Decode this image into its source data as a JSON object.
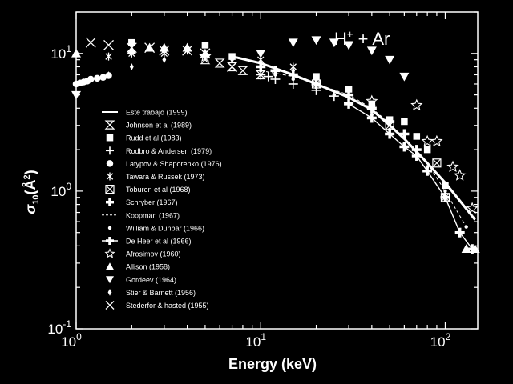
{
  "chart_data": {
    "type": "scatter",
    "title": "",
    "annotation": {
      "base": "H",
      "sup": "+",
      "rest": " + Ar"
    },
    "xlabel": "Energy (keV)",
    "ylabel": {
      "sigma": "σ",
      "sub": "10",
      "unit": "(Å",
      "sup": "2",
      "close": ")"
    },
    "xscale": "log",
    "yscale": "log",
    "xlim": [
      1,
      150
    ],
    "ylim": [
      0.1,
      20
    ],
    "x_ticks": [
      {
        "value": 1,
        "base": "10",
        "exp": "0"
      },
      {
        "value": 10,
        "base": "10",
        "exp": "1"
      },
      {
        "value": 100,
        "base": "10",
        "exp": "2"
      }
    ],
    "y_ticks": [
      {
        "value": 0.1,
        "base": "10",
        "exp": "-1"
      },
      {
        "value": 1,
        "base": "10",
        "exp": "0"
      },
      {
        "value": 10,
        "base": "10",
        "exp": "1"
      }
    ],
    "grid": false,
    "legend_position": "left",
    "series": [
      {
        "name": "Este trabajo (1999)",
        "marker": "line",
        "x": [
          7,
          10,
          15,
          20,
          30,
          40,
          50,
          60,
          80,
          100,
          120,
          145
        ],
        "y": [
          9.5,
          8.5,
          7.0,
          6.0,
          4.8,
          3.9,
          3.0,
          2.4,
          1.6,
          1.15,
          0.85,
          0.62
        ]
      },
      {
        "name": "Johnson et al (1989)",
        "marker": "hourglass",
        "x": [
          5,
          6,
          7,
          8,
          10
        ],
        "y": [
          9.0,
          8.5,
          8.0,
          7.5,
          7.0
        ]
      },
      {
        "name": "Rudd et al (1983)",
        "marker": "square",
        "x": [
          2,
          5,
          7,
          20,
          30,
          40,
          50,
          60,
          70,
          80,
          100
        ],
        "y": [
          12,
          11.5,
          9.5,
          6.8,
          5.5,
          4.3,
          3.3,
          3.2,
          2.5,
          2.0,
          1.1
        ]
      },
      {
        "name": "Rodbro & Andersen (1979)",
        "marker": "plus",
        "x": [
          10,
          11,
          12,
          15,
          20,
          25,
          30
        ],
        "y": [
          7.0,
          6.8,
          6.5,
          6.0,
          5.4,
          4.9,
          4.4
        ]
      },
      {
        "name": "Latypov & Shaporenko (1976)",
        "marker": "circle",
        "x": [
          1.0,
          1.05,
          1.1,
          1.15,
          1.2,
          1.3,
          1.4,
          1.5
        ],
        "y": [
          6.0,
          6.1,
          6.2,
          6.3,
          6.5,
          6.6,
          6.7,
          6.9
        ]
      },
      {
        "name": "Tawara & Russek (1973)",
        "marker": "asterisk",
        "x": [
          1.5,
          2,
          3,
          4,
          5,
          10,
          15
        ],
        "y": [
          9.5,
          10,
          10,
          10.5,
          10,
          9,
          8
        ]
      },
      {
        "name": "Toburen et al (1968)",
        "marker": "crossbox",
        "x": [
          20,
          50,
          90,
          100
        ],
        "y": [
          6.0,
          3.0,
          1.6,
          0.9
        ]
      },
      {
        "name": "Schryber (1967)",
        "marker": "boldplus",
        "x": [
          10,
          12,
          15,
          20,
          30,
          40,
          50,
          60,
          70
        ],
        "y": [
          8.0,
          7.5,
          7.0,
          6.0,
          5.0,
          4.0,
          3.2,
          2.6,
          2.0
        ]
      },
      {
        "name": "Koopman (1967)",
        "marker": "dashline",
        "x": [
          10,
          15,
          20,
          30,
          40,
          50,
          60,
          80,
          100,
          130
        ],
        "y": [
          7.5,
          6.8,
          6.0,
          5.0,
          4.0,
          3.1,
          2.4,
          1.6,
          1.0,
          0.55
        ]
      },
      {
        "name": "William & Dunbar (1966)",
        "marker": "dot",
        "x": [
          10,
          12,
          15,
          20,
          25,
          30,
          40,
          50,
          60,
          80,
          100,
          130
        ],
        "y": [
          7.5,
          7.0,
          6.5,
          5.8,
          5.0,
          4.3,
          3.6,
          2.8,
          2.2,
          1.5,
          1.0,
          0.55
        ]
      },
      {
        "name": "De Heer et al (1966)",
        "marker": "boldplusline",
        "x": [
          30,
          40,
          50,
          60,
          70,
          80,
          100,
          120,
          140
        ],
        "y": [
          4.3,
          3.4,
          2.6,
          2.1,
          1.8,
          1.4,
          0.9,
          0.5,
          0.38
        ]
      },
      {
        "name": "Afrosimov (1960)",
        "marker": "star",
        "x": [
          5,
          40,
          70,
          80,
          90,
          110,
          120,
          140
        ],
        "y": [
          9.5,
          4.5,
          4.2,
          2.3,
          2.3,
          1.5,
          1.3,
          0.75
        ]
      },
      {
        "name": "Allison (1958)",
        "marker": "triangle",
        "x": [
          1.0,
          2,
          2.5,
          3,
          4,
          5,
          130,
          145
        ],
        "y": [
          10,
          10.5,
          11,
          11,
          11,
          10,
          0.38,
          0.38
        ]
      },
      {
        "name": "Gordeev (1964)",
        "marker": "triangle-down",
        "x": [
          1.0,
          10,
          15,
          20,
          25,
          30,
          40,
          50,
          60
        ],
        "y": [
          5.0,
          10,
          12,
          12.5,
          12,
          11.5,
          10.5,
          9.0,
          6.8
        ]
      },
      {
        "name": "Stier & Barnett (1956)",
        "marker": "diamond",
        "x": [
          1.5,
          2,
          3,
          5,
          7,
          10,
          15,
          20
        ],
        "y": [
          7.0,
          8.0,
          9.0,
          9.5,
          9.0,
          8.5,
          7.5,
          6.5
        ]
      },
      {
        "name": "Stederfor & hasted (1955)",
        "marker": "x",
        "x": [
          1.2,
          1.5,
          2,
          2.5,
          3,
          4,
          5,
          7
        ],
        "y": [
          12,
          11.5,
          11,
          11,
          10.5,
          10.5,
          10,
          8
        ]
      }
    ]
  }
}
